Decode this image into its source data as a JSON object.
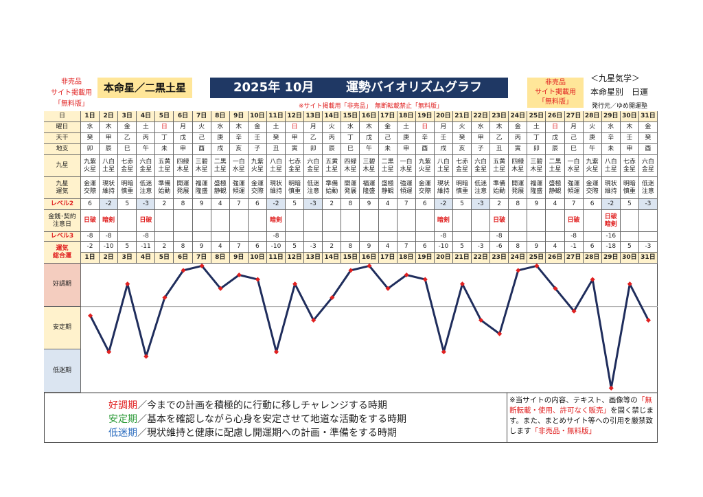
{
  "header": {
    "left_note": [
      "非売品",
      "サイト掲載用",
      "「無料版」"
    ],
    "honmei": "本命星／二黒土星",
    "title_date": "2025年 10月",
    "title": "運勢バイオリズムグラフ",
    "right_note": [
      "非売品",
      "サイト掲載用",
      "「無料版」"
    ],
    "brand": "＜九星気学＞",
    "brand_sub": "本命星別　日運",
    "publisher": "発行元／ゆめ開運塾",
    "notice": "※サイト掲載用「非売品」　無断転載禁止「無料版」"
  },
  "table": {
    "labels": {
      "days": [
        "日"
      ],
      "weekday": [
        "曜日"
      ],
      "stem": [
        "天干"
      ],
      "branch": [
        "地支"
      ],
      "star": [
        "九星"
      ],
      "fortune": [
        "九星",
        "運気"
      ],
      "level2": [
        "レベル2"
      ],
      "caution": [
        "金銭･契約",
        "注意日"
      ],
      "level3": [
        "レベル3"
      ],
      "total": [
        "運気",
        "総合運"
      ]
    },
    "days": [
      "1日",
      "2日",
      "3日",
      "4日",
      "5日",
      "6日",
      "7日",
      "8日",
      "9日",
      "10日",
      "11日",
      "12日",
      "13日",
      "14日",
      "15日",
      "16日",
      "17日",
      "18日",
      "19日",
      "20日",
      "21日",
      "22日",
      "23日",
      "24日",
      "25日",
      "26日",
      "27日",
      "28日",
      "29日",
      "30日",
      "31日"
    ],
    "weekday": [
      "水",
      "木",
      "金",
      "土",
      "日",
      "月",
      "火",
      "水",
      "木",
      "金",
      "土",
      "日",
      "月",
      "火",
      "水",
      "木",
      "金",
      "土",
      "日",
      "月",
      "火",
      "水",
      "木",
      "金",
      "土",
      "日",
      "月",
      "火",
      "水",
      "木",
      "金"
    ],
    "holiday_color": "#e02020",
    "holidays": [
      "日"
    ],
    "stem": [
      "癸",
      "甲",
      "乙",
      "丙",
      "丁",
      "戊",
      "己",
      "庚",
      "辛",
      "壬",
      "癸",
      "甲",
      "乙",
      "丙",
      "丁",
      "戊",
      "己",
      "庚",
      "辛",
      "壬",
      "癸",
      "甲",
      "乙",
      "丙",
      "丁",
      "戊",
      "己",
      "庚",
      "辛",
      "壬",
      "癸"
    ],
    "branch": [
      "卯",
      "辰",
      "巳",
      "午",
      "未",
      "申",
      "酉",
      "戌",
      "亥",
      "子",
      "丑",
      "寅",
      "卯",
      "辰",
      "巳",
      "午",
      "未",
      "申",
      "酉",
      "戌",
      "亥",
      "子",
      "丑",
      "寅",
      "卯",
      "辰",
      "巳",
      "午",
      "未",
      "申",
      "酉"
    ],
    "star": [
      "九紫火星",
      "八白土星",
      "七赤金星",
      "六白金星",
      "五黄土星",
      "四緑木星",
      "三碧木星",
      "二黒土星",
      "一白水星",
      "九紫火星",
      "八白土星",
      "七赤金星",
      "六白金星",
      "五黄土星",
      "四緑木星",
      "三碧木星",
      "二黒土星",
      "一白水星",
      "九紫火星",
      "八白土星",
      "七赤金星",
      "六白金星",
      "五黄土星",
      "四緑木星",
      "三碧木星",
      "二黒土星",
      "一白水星",
      "九紫火星",
      "八白土星",
      "七赤金星",
      "六白金星"
    ],
    "fortune": [
      "金運交際",
      "現状維持",
      "明暗慎重",
      "低迷注意",
      "準備始動",
      "開運発展",
      "福運隆盛",
      "盛極静観",
      "強運傾運",
      "金運交際",
      "現状維持",
      "明暗慎重",
      "低迷注意",
      "準備始動",
      "開運発展",
      "福運隆盛",
      "盛極静観",
      "強運傾運",
      "金運交際",
      "現状維持",
      "明暗慎重",
      "低迷注意",
      "準備始動",
      "開運発展",
      "福運隆盛",
      "盛極静観",
      "強運傾運",
      "金運交際",
      "現状維持",
      "明暗慎重",
      "低迷注意"
    ],
    "level2": [
      6,
      -2,
      5,
      -3,
      2,
      8,
      9,
      4,
      7,
      6,
      -2,
      5,
      -3,
      2,
      8,
      9,
      4,
      7,
      6,
      -2,
      5,
      -3,
      2,
      8,
      9,
      4,
      7,
      6,
      -2,
      5,
      -3
    ],
    "caution": [
      [
        "日破"
      ],
      [
        "暗剣"
      ],
      [],
      [
        "日破"
      ],
      [],
      [],
      [],
      [],
      [],
      [],
      [
        "暗剣"
      ],
      [],
      [],
      [],
      [],
      [],
      [],
      [],
      [],
      [
        "暗剣"
      ],
      [],
      [],
      [
        "日破"
      ],
      [],
      [],
      [],
      [
        "日破"
      ],
      [],
      [
        "日破",
        "暗剣"
      ],
      [],
      []
    ],
    "level3": [
      -8,
      -8,
      null,
      -8,
      null,
      null,
      null,
      null,
      null,
      null,
      -8,
      null,
      null,
      null,
      null,
      null,
      null,
      null,
      null,
      -8,
      null,
      null,
      -8,
      null,
      null,
      null,
      -8,
      null,
      -16,
      null,
      null
    ]
  },
  "chart_data": {
    "type": "line",
    "values": [
      -2,
      -10,
      5,
      -11,
      2,
      8,
      9,
      4,
      7,
      6,
      -10,
      5,
      -3,
      2,
      8,
      9,
      4,
      7,
      6,
      -10,
      5,
      -3,
      -6,
      8,
      9,
      4,
      -1,
      6,
      -18,
      5,
      -3
    ],
    "color": "#1f2d5c",
    "marker_color": "#e02020",
    "ylim": [
      -19,
      9.5
    ],
    "bands": [
      {
        "label": "好調期",
        "color": "#f4cdbf"
      },
      {
        "label": "安定期",
        "color": "#fff2cc"
      },
      {
        "label": "低迷期",
        "color": "#dbe5f1"
      }
    ]
  },
  "footer": {
    "legend": [
      {
        "term": "好調期",
        "color": "#e02020",
        "text": "／今までの計画を積極的に行動に移しチャレンジする時期"
      },
      {
        "term": "安定期",
        "color": "#2e9b3a",
        "text": "／基本を確認しながら心身を安定させて地道な活動をする時期"
      },
      {
        "term": "低迷期",
        "color": "#2f6fc0",
        "text": "／現状維持と健康に配慮し開運期への計画・準備をする時期"
      }
    ],
    "notice": [
      "※当サイトの内容、テキスト、画像等の",
      "「無断転載・使用、許可なく販売」",
      "を固く禁じます。また、まとめサイト等への引用を厳禁致します",
      "「非売品・無料版」"
    ]
  }
}
